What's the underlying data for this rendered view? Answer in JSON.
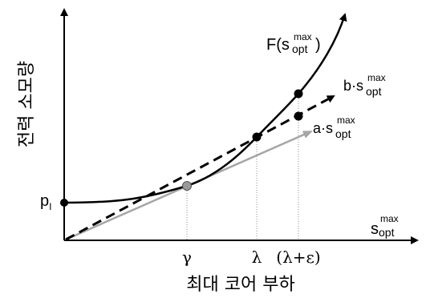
{
  "axes": {
    "y_label": "전력 소모량",
    "x_label": "최대 코어 부하",
    "x_axis_var_main": "s",
    "x_axis_var_sup": "max",
    "x_axis_var_sub": "opt"
  },
  "labels": {
    "p_main": "p",
    "p_sub": "I",
    "curve_prefix": "F(",
    "curve_var": "s",
    "curve_sup": "max",
    "curve_sub": "opt",
    "curve_suffix": ")",
    "b_prefix": "b·",
    "b_var": "s",
    "b_sup": "max",
    "b_sub": "opt",
    "a_prefix": "a·",
    "a_var": "s",
    "a_sup": "max",
    "a_sub": "opt",
    "gamma": "γ",
    "lambda": "λ",
    "lambda_eps": "(λ+ε)"
  },
  "colors": {
    "curve": "#000000",
    "dashed_line": "#000000",
    "gray_arrow": "#a6a6a6",
    "gray_point": "#9a9a9a",
    "guide": "#8c8c8c"
  }
}
